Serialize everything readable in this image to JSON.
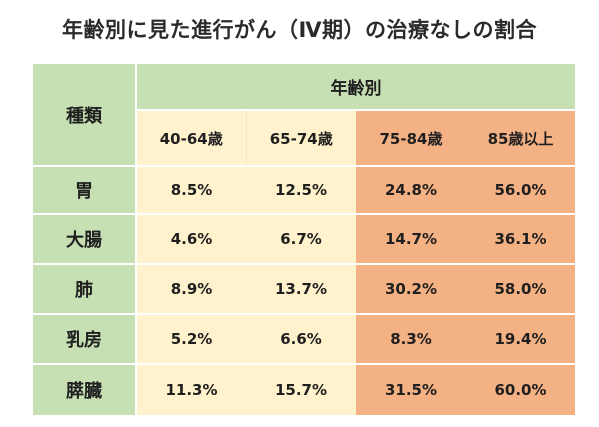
{
  "title": "年齢別に見た進行がん（Ⅳ期）の治療なしの割合",
  "table": {
    "kind_header": "種類",
    "age_header": "年齢別",
    "age_groups": [
      "40-64歳",
      "65-74歳",
      "75-84歳",
      "85歳以上"
    ],
    "rows": [
      {
        "label": "胃",
        "values": [
          "8.5%",
          "12.5%",
          "24.8%",
          "56.0%"
        ]
      },
      {
        "label": "大腸",
        "values": [
          "4.6%",
          "6.7%",
          "14.7%",
          "36.1%"
        ]
      },
      {
        "label": "肺",
        "values": [
          "8.9%",
          "13.7%",
          "30.2%",
          "58.0%"
        ]
      },
      {
        "label": "乳房",
        "values": [
          "5.2%",
          "6.6%",
          "8.3%",
          "19.4%"
        ]
      },
      {
        "label": "膵臓",
        "values": [
          "11.3%",
          "15.7%",
          "31.5%",
          "60.0%"
        ]
      }
    ]
  },
  "colors": {
    "header_green": "#c6e0b4",
    "cream": "#fff2cc",
    "orange": "#f4b183"
  }
}
